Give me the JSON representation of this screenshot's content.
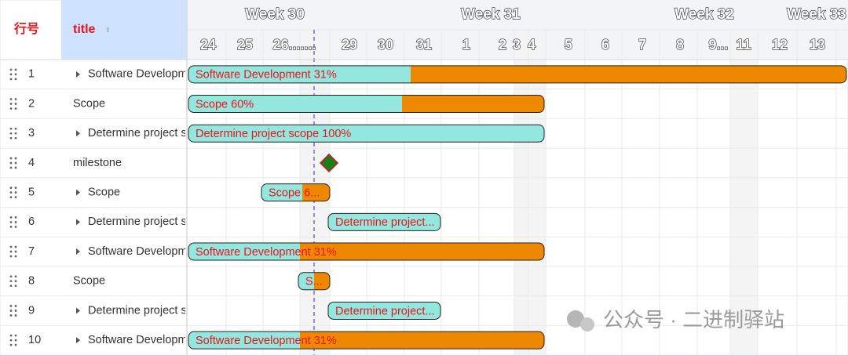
{
  "table": {
    "columns": [
      "行号",
      "title"
    ],
    "rows": [
      {
        "index": 1,
        "title": "Software Development",
        "expandable": true
      },
      {
        "index": 2,
        "title": "Scope",
        "expandable": false
      },
      {
        "index": 3,
        "title": "Determine project scope",
        "expandable": true
      },
      {
        "index": 4,
        "title": "milestone",
        "expandable": false
      },
      {
        "index": 5,
        "title": "Scope",
        "expandable": true
      },
      {
        "index": 6,
        "title": "Determine project scope",
        "expandable": true
      },
      {
        "index": 7,
        "title": "Software Development",
        "expandable": true
      },
      {
        "index": 8,
        "title": "Scope",
        "expandable": false
      },
      {
        "index": 9,
        "title": "Determine project scope",
        "expandable": true
      },
      {
        "index": 10,
        "title": "Software Development",
        "expandable": true
      }
    ]
  },
  "timeline": {
    "weeks": [
      "Week 30",
      "Week 31",
      "Week 32",
      "Week 33"
    ],
    "days": [
      "24",
      "25",
      "26.......",
      "29",
      "30",
      "31",
      "1",
      "2",
      "3",
      "4",
      "5",
      "6",
      "7",
      "8",
      "9...",
      "11",
      "12",
      "13"
    ]
  },
  "tasks": [
    {
      "label": "Software Development 31%"
    },
    {
      "label": "Scope 60%"
    },
    {
      "label": "Determine project scope 100%"
    },
    {
      "milestone": true
    },
    {
      "label": "Scope 6..."
    },
    {
      "label": "Determine project..."
    },
    {
      "label": "Software Development 31%"
    },
    {
      "label": "S..."
    },
    {
      "label": "Determine project..."
    },
    {
      "label": "Software Development 31%"
    }
  ],
  "watermark": "公众号 · 二进制驿站"
}
